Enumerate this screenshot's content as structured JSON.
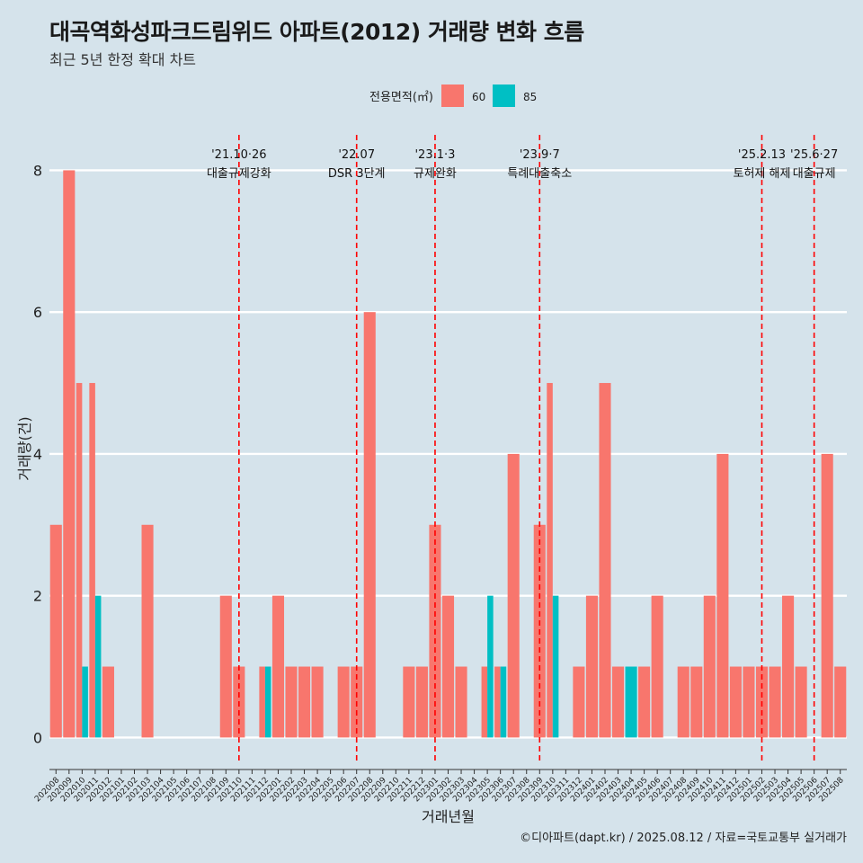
{
  "header": {
    "title": "대곡역화성파크드림위드 아파트(2012) 거래량 변화 흐름",
    "subtitle": "최근 5년 한정 확대 차트"
  },
  "caption": "©디아파트(dapt.kr) / 2025.08.12 / 자료=국토교통부 실거래가",
  "colors": {
    "background": "#d5e3eb",
    "s60": "#f8766d",
    "s85": "#00bfc4",
    "event_line": "#ff0000"
  },
  "chart_data": {
    "type": "bar",
    "xlabel": "거래년월",
    "ylabel": "거래량(건)",
    "ylim": [
      -0.35,
      8.5
    ],
    "yticks": [
      0,
      2,
      4,
      6,
      8
    ],
    "grid": true,
    "legend": {
      "title": "전용면적(㎡)",
      "position": "top"
    },
    "categories": [
      "202008",
      "202009",
      "202010",
      "202011",
      "202012",
      "202101",
      "202102",
      "202103",
      "202104",
      "202105",
      "202106",
      "202107",
      "202108",
      "202109",
      "202110",
      "202111",
      "202112",
      "202201",
      "202202",
      "202203",
      "202204",
      "202205",
      "202206",
      "202207",
      "202208",
      "202209",
      "202210",
      "202211",
      "202212",
      "202301",
      "202302",
      "202303",
      "202304",
      "202305",
      "202306",
      "202307",
      "202308",
      "202309",
      "202310",
      "202311",
      "202312",
      "202401",
      "202402",
      "202403",
      "202404",
      "202405",
      "202406",
      "202407",
      "202408",
      "202409",
      "202410",
      "202411",
      "202412",
      "202501",
      "202502",
      "202503",
      "202504",
      "202505",
      "202506",
      "202507",
      "202508"
    ],
    "series": [
      {
        "name": "60",
        "values": [
          3,
          8,
          5,
          5,
          1,
          0,
          0,
          3,
          0,
          0,
          0,
          0,
          0,
          2,
          1,
          0,
          1,
          2,
          1,
          1,
          1,
          0,
          1,
          1,
          6,
          0,
          0,
          1,
          1,
          3,
          2,
          1,
          0,
          1,
          1,
          4,
          0,
          3,
          5,
          0,
          1,
          2,
          5,
          1,
          0,
          1,
          2,
          0,
          1,
          1,
          2,
          4,
          1,
          1,
          1,
          1,
          2,
          1,
          0,
          4,
          1
        ]
      },
      {
        "name": "85",
        "values": [
          0,
          0,
          1,
          2,
          0,
          0,
          0,
          0,
          0,
          0,
          0,
          0,
          0,
          0,
          0,
          0,
          1,
          0,
          0,
          0,
          0,
          0,
          0,
          0,
          0,
          0,
          0,
          0,
          0,
          0,
          0,
          0,
          0,
          2,
          1,
          0,
          0,
          0,
          2,
          0,
          0,
          0,
          0,
          0,
          1,
          0,
          0,
          0,
          0,
          0,
          0,
          0,
          0,
          0,
          0,
          0,
          0,
          0,
          0,
          0,
          0
        ]
      }
    ],
    "events": [
      {
        "date": "'21.10·26",
        "label": "대출규제강화",
        "month": "202110"
      },
      {
        "date": "'22.07",
        "label": "DSR 3단계",
        "month": "202207"
      },
      {
        "date": "'23.1·3",
        "label": "규제완화",
        "month": "202301"
      },
      {
        "date": "'23.9·7",
        "label": "특례대출축소",
        "month": "202309"
      },
      {
        "date": "'25.2.13",
        "label": "토허제 해제",
        "month": "202502"
      },
      {
        "date": "'25.6·27",
        "label": "대출규제",
        "month": "202506"
      }
    ]
  }
}
